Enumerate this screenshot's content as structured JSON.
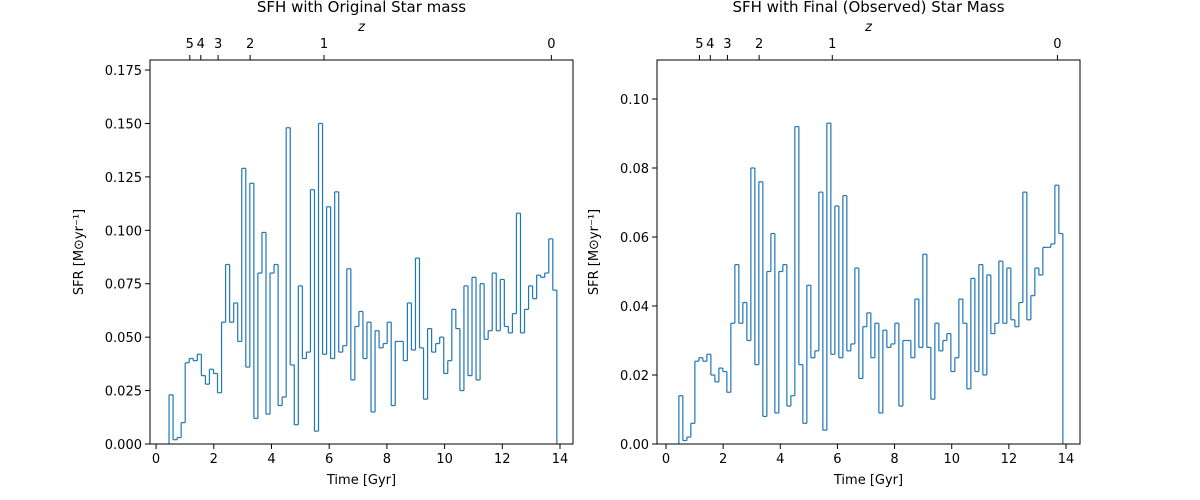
{
  "chart_data": [
    {
      "type": "histogram",
      "title": "SFH with Original Star mass",
      "xlabel": "Time [Gyr]",
      "ylabel": "SFR [M⊙yr⁻¹]",
      "x2label": "z",
      "color": "#1f77b4",
      "bins": [
        0.45,
        0.59,
        0.73,
        0.87,
        1.01,
        1.15,
        1.29,
        1.43,
        1.57,
        1.71,
        1.85,
        1.99,
        2.13,
        2.27,
        2.41,
        2.55,
        2.69,
        2.83,
        2.97,
        3.11,
        3.25,
        3.39,
        3.53,
        3.67,
        3.81,
        3.95,
        4.09,
        4.23,
        4.37,
        4.51,
        4.65,
        4.79,
        4.93,
        5.07,
        5.21,
        5.35,
        5.49,
        5.63,
        5.77,
        5.91,
        6.05,
        6.19,
        6.33,
        6.47,
        6.61,
        6.75,
        6.89,
        7.03,
        7.17,
        7.31,
        7.45,
        7.59,
        7.73,
        7.87,
        8.01,
        8.15,
        8.29,
        8.43,
        8.57,
        8.71,
        8.85,
        8.99,
        9.13,
        9.27,
        9.41,
        9.55,
        9.69,
        9.83,
        9.97,
        10.11,
        10.25,
        10.39,
        10.53,
        10.67,
        10.81,
        10.95,
        11.09,
        11.23,
        11.37,
        11.51,
        11.65,
        11.79,
        11.93,
        12.07,
        12.21,
        12.35,
        12.49,
        12.63,
        12.77,
        12.91,
        13.05,
        13.19,
        13.33,
        13.47,
        13.61,
        13.75,
        13.89
      ],
      "values": [
        0.023,
        0.002,
        0.003,
        0.01,
        0.038,
        0.04,
        0.039,
        0.042,
        0.032,
        0.028,
        0.035,
        0.033,
        0.024,
        0.057,
        0.084,
        0.057,
        0.066,
        0.048,
        0.129,
        0.036,
        0.122,
        0.012,
        0.08,
        0.099,
        0.014,
        0.08,
        0.084,
        0.018,
        0.022,
        0.148,
        0.037,
        0.009,
        0.074,
        0.04,
        0.043,
        0.119,
        0.006,
        0.15,
        0.042,
        0.111,
        0.04,
        0.118,
        0.043,
        0.046,
        0.082,
        0.03,
        0.055,
        0.062,
        0.04,
        0.057,
        0.015,
        0.053,
        0.045,
        0.047,
        0.057,
        0.018,
        0.048,
        0.048,
        0.039,
        0.066,
        0.044,
        0.087,
        0.045,
        0.021,
        0.054,
        0.043,
        0.047,
        0.05,
        0.033,
        0.039,
        0.063,
        0.054,
        0.025,
        0.074,
        0.032,
        0.078,
        0.03,
        0.075,
        0.049,
        0.053,
        0.08,
        0.053,
        0.077,
        0.055,
        0.052,
        0.061,
        0.108,
        0.052,
        0.063,
        0.074,
        0.068,
        0.079,
        0.078,
        0.08,
        0.096,
        0.072
      ],
      "xlim": [
        -0.21,
        14.45
      ],
      "ylim": [
        0,
        0.1797
      ],
      "xticks": [
        0,
        2,
        4,
        6,
        8,
        10,
        12,
        14
      ],
      "yticks": [
        {
          "value": 0,
          "label": "0.000"
        },
        {
          "value": 0.025,
          "label": "0.025"
        },
        {
          "value": 0.05,
          "label": "0.050"
        },
        {
          "value": 0.075,
          "label": "0.075"
        },
        {
          "value": 0.1,
          "label": "0.100"
        },
        {
          "value": 0.125,
          "label": "0.125"
        },
        {
          "value": 0.15,
          "label": "0.150"
        },
        {
          "value": 0.175,
          "label": "0.175"
        }
      ],
      "x2ticks": [
        {
          "value": 1.17,
          "label": "5"
        },
        {
          "value": 1.55,
          "label": "4"
        },
        {
          "value": 2.15,
          "label": "3"
        },
        {
          "value": 3.26,
          "label": "2"
        },
        {
          "value": 5.82,
          "label": "1"
        },
        {
          "value": 13.7,
          "label": "0"
        }
      ]
    },
    {
      "type": "histogram",
      "title": "SFH with Final (Observed) Star Mass",
      "xlabel": "Time [Gyr]",
      "ylabel": "SFR [M⊙yr⁻¹]",
      "x2label": "z",
      "color": "#1f77b4",
      "bins": [
        0.45,
        0.59,
        0.73,
        0.87,
        1.01,
        1.15,
        1.29,
        1.43,
        1.57,
        1.71,
        1.85,
        1.99,
        2.13,
        2.27,
        2.41,
        2.55,
        2.69,
        2.83,
        2.97,
        3.11,
        3.25,
        3.39,
        3.53,
        3.67,
        3.81,
        3.95,
        4.09,
        4.23,
        4.37,
        4.51,
        4.65,
        4.79,
        4.93,
        5.07,
        5.21,
        5.35,
        5.49,
        5.63,
        5.77,
        5.91,
        6.05,
        6.19,
        6.33,
        6.47,
        6.61,
        6.75,
        6.89,
        7.03,
        7.17,
        7.31,
        7.45,
        7.59,
        7.73,
        7.87,
        8.01,
        8.15,
        8.29,
        8.43,
        8.57,
        8.71,
        8.85,
        8.99,
        9.13,
        9.27,
        9.41,
        9.55,
        9.69,
        9.83,
        9.97,
        10.11,
        10.25,
        10.39,
        10.53,
        10.67,
        10.81,
        10.95,
        11.09,
        11.23,
        11.37,
        11.51,
        11.65,
        11.79,
        11.93,
        12.07,
        12.21,
        12.35,
        12.49,
        12.63,
        12.77,
        12.91,
        13.05,
        13.19,
        13.33,
        13.47,
        13.61,
        13.75,
        13.89
      ],
      "values": [
        0.014,
        0.001,
        0.002,
        0.006,
        0.024,
        0.025,
        0.024,
        0.026,
        0.02,
        0.018,
        0.022,
        0.021,
        0.015,
        0.035,
        0.052,
        0.035,
        0.041,
        0.03,
        0.08,
        0.023,
        0.076,
        0.008,
        0.05,
        0.061,
        0.009,
        0.05,
        0.052,
        0.011,
        0.014,
        0.092,
        0.023,
        0.006,
        0.046,
        0.025,
        0.027,
        0.073,
        0.004,
        0.093,
        0.026,
        0.069,
        0.025,
        0.072,
        0.027,
        0.029,
        0.051,
        0.019,
        0.034,
        0.038,
        0.025,
        0.035,
        0.009,
        0.033,
        0.028,
        0.029,
        0.035,
        0.011,
        0.03,
        0.03,
        0.025,
        0.042,
        0.028,
        0.055,
        0.028,
        0.013,
        0.035,
        0.027,
        0.03,
        0.032,
        0.021,
        0.025,
        0.042,
        0.035,
        0.016,
        0.048,
        0.021,
        0.052,
        0.02,
        0.049,
        0.032,
        0.035,
        0.053,
        0.035,
        0.051,
        0.036,
        0.034,
        0.041,
        0.073,
        0.036,
        0.043,
        0.051,
        0.049,
        0.057,
        0.057,
        0.058,
        0.075,
        0.061
      ],
      "xlim": [
        -0.315,
        14.49
      ],
      "ylim": [
        0,
        0.1113
      ],
      "xticks": [
        0,
        2,
        4,
        6,
        8,
        10,
        12,
        14
      ],
      "yticks": [
        {
          "value": 0,
          "label": "0.00"
        },
        {
          "value": 0.02,
          "label": "0.02"
        },
        {
          "value": 0.04,
          "label": "0.04"
        },
        {
          "value": 0.06,
          "label": "0.06"
        },
        {
          "value": 0.08,
          "label": "0.08"
        },
        {
          "value": 0.1,
          "label": "0.10"
        }
      ],
      "x2ticks": [
        {
          "value": 1.17,
          "label": "5"
        },
        {
          "value": 1.55,
          "label": "4"
        },
        {
          "value": 2.15,
          "label": "3"
        },
        {
          "value": 3.26,
          "label": "2"
        },
        {
          "value": 5.82,
          "label": "1"
        },
        {
          "value": 13.7,
          "label": "0"
        }
      ]
    }
  ]
}
